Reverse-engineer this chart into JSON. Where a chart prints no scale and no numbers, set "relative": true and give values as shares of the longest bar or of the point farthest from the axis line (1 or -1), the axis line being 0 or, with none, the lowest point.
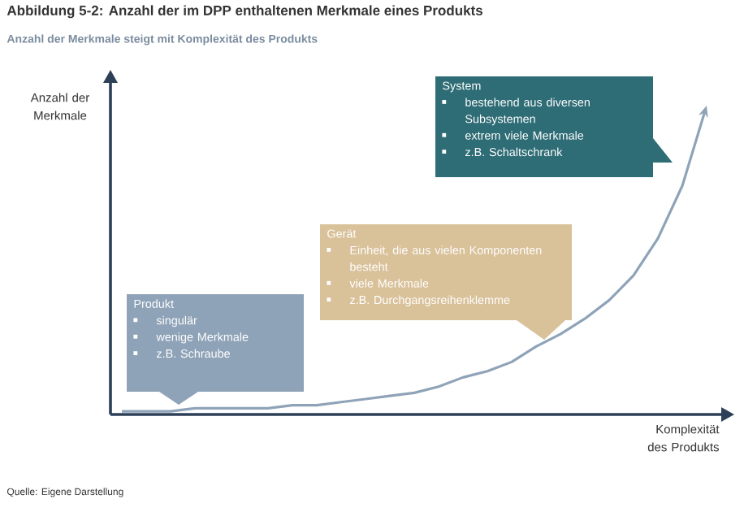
{
  "chart_data": {
    "type": "line",
    "relative": true,
    "tick_labels": false,
    "title": "Abbildung 5-2: Anzahl der im DPP enthaltenen Merkmale eines Produkts",
    "subtitle": "Anzahl der Merkmale steigt mit Komplexität des Produkts",
    "xlabel": "Komplexität des Produkts",
    "ylabel": "Anzahl der Merkmale",
    "categories": [
      null,
      null,
      null,
      null,
      null,
      null,
      null,
      null,
      null,
      null,
      null,
      null,
      null,
      null,
      null,
      null,
      null,
      null,
      null,
      null,
      null,
      null,
      null,
      null,
      null
    ],
    "series": [
      {
        "color": "#8fa3b8",
        "values": [
          0.01,
          0.01,
          0.01,
          0.02,
          0.02,
          0.02,
          0.02,
          0.03,
          0.03,
          0.04,
          0.05,
          0.06,
          0.07,
          0.09,
          0.12,
          0.14,
          0.17,
          0.22,
          0.26,
          0.31,
          0.37,
          0.45,
          0.57,
          0.74,
          1.0
        ]
      }
    ],
    "annotations": [
      "Produkt",
      "singulär",
      "wenige Merkmale",
      "z.B. Schraube",
      "Gerät",
      "Einheit, die aus vielen Komponenten besteht",
      "viele Merkmale",
      "z.B. Durchgangsreihenklemme",
      "System",
      "bestehend aus diversen Subsystemen",
      "extrem viele Merkmale",
      "z.B. Schaltschrank",
      "Quelle: Eigene Darstellung"
    ]
  }
}
